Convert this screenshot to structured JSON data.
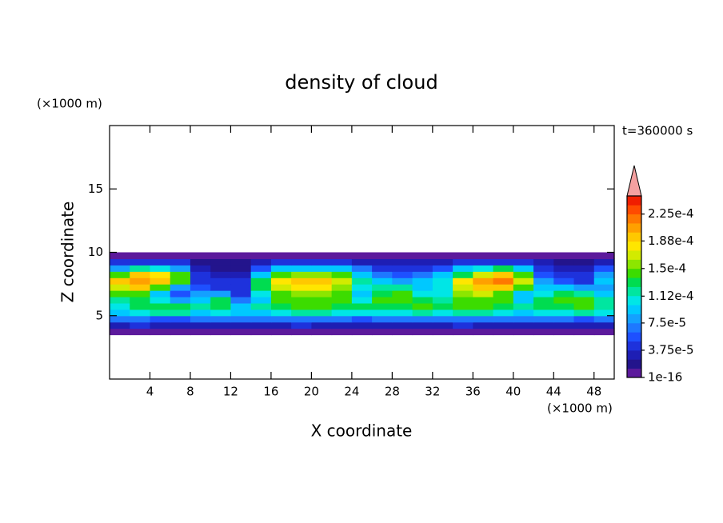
{
  "chart_data": {
    "type": "contour",
    "title": "density of cloud",
    "xlabel": "X coordinate",
    "ylabel": "Z coordinate",
    "xunit": "(×1000 m)",
    "yunit": "(×1000 m)",
    "annotation": "t=360000 s",
    "xlim": [
      0,
      50
    ],
    "ylim": [
      0,
      20
    ],
    "xticks": [
      4,
      8,
      12,
      16,
      20,
      24,
      28,
      32,
      36,
      40,
      44,
      48
    ],
    "yticks": [
      5,
      10,
      15
    ],
    "x": [
      1,
      3,
      5,
      7,
      9,
      11,
      13,
      15,
      17,
      19,
      21,
      23,
      25,
      27,
      29,
      31,
      33,
      35,
      37,
      39,
      41,
      43,
      45,
      47,
      49
    ],
    "z": [
      3.75,
      4.25,
      4.75,
      5.25,
      5.75,
      6.25,
      6.75,
      7.25,
      7.75,
      8.25,
      8.75,
      9.25,
      9.75
    ],
    "values": [
      [
        1e-05,
        1e-05,
        1e-05,
        1e-05,
        1e-05,
        1e-05,
        1e-05,
        1e-05,
        1e-05,
        1e-05,
        1e-05,
        1e-05,
        1e-05,
        1e-05,
        1e-05,
        1e-05,
        1e-05,
        1e-05,
        1e-05,
        1e-05,
        1e-05,
        1e-05,
        1e-05,
        1e-05,
        1e-05
      ],
      [
        3e-05,
        4e-05,
        3e-05,
        3e-05,
        3e-05,
        3e-05,
        3e-05,
        3e-05,
        3e-05,
        4e-05,
        3e-05,
        3e-05,
        3e-05,
        3e-05,
        3e-05,
        3e-05,
        3e-05,
        4e-05,
        3e-05,
        3e-05,
        3e-05,
        3e-05,
        3e-05,
        3e-05,
        3e-05
      ],
      [
        7e-05,
        7e-05,
        6e-05,
        6e-05,
        7e-05,
        7e-05,
        7e-05,
        7e-05,
        7e-05,
        7e-05,
        7e-05,
        7e-05,
        6e-05,
        7e-05,
        7e-05,
        7e-05,
        7e-05,
        7e-05,
        7e-05,
        7e-05,
        7e-05,
        7e-05,
        7e-05,
        6e-05,
        7e-05
      ],
      [
        0.0001,
        0.00011,
        0.00012,
        0.00012,
        0.0001,
        0.00011,
        9e-05,
        0.0001,
        0.00011,
        0.00012,
        0.00012,
        0.00011,
        0.00011,
        0.00011,
        0.00011,
        0.00012,
        0.00011,
        0.00012,
        0.00012,
        0.00011,
        0.0001,
        0.00011,
        0.00011,
        0.00012,
        0.00011
      ],
      [
        0.00011,
        0.00013,
        0.00013,
        0.00013,
        0.00012,
        0.00013,
        9e-05,
        0.00012,
        0.00013,
        0.00014,
        0.00014,
        0.00013,
        0.00013,
        0.00013,
        0.00013,
        0.00014,
        0.00013,
        0.00014,
        0.00014,
        0.00013,
        0.00012,
        0.00013,
        0.00013,
        0.00014,
        0.00012
      ],
      [
        0.00012,
        0.00013,
        0.00011,
        8e-05,
        0.0001,
        0.00013,
        7e-05,
        9e-05,
        0.00014,
        0.00015,
        0.00015,
        0.00014,
        0.00011,
        0.00014,
        0.00015,
        0.00013,
        0.00012,
        0.00015,
        0.00015,
        0.00014,
        0.0001,
        0.00013,
        0.00014,
        0.00015,
        0.00012
      ],
      [
        0.00014,
        0.00015,
        0.0001,
        6e-05,
        8e-05,
        8e-05,
        5e-05,
        0.00011,
        0.00015,
        0.00016,
        0.00016,
        0.00014,
        0.0001,
        0.00013,
        0.00015,
        0.00011,
        0.00011,
        0.00016,
        0.00017,
        0.00015,
        9e-05,
        0.00011,
        0.00013,
        0.00012,
        0.0001
      ],
      [
        0.00017,
        0.0002,
        0.00015,
        8e-05,
        6e-05,
        5e-05,
        4e-05,
        0.00013,
        0.00017,
        0.00018,
        0.00018,
        0.00016,
        0.00011,
        0.00012,
        0.00012,
        0.0001,
        0.00011,
        0.00017,
        0.0002,
        0.00019,
        0.00014,
        9e-05,
        9e-05,
        8e-05,
        8e-05
      ],
      [
        0.00019,
        0.00021,
        0.0002,
        0.00014,
        5e-05,
        4e-05,
        4e-05,
        0.00013,
        0.00018,
        0.00019,
        0.00019,
        0.00017,
        0.00012,
        9e-05,
        8e-05,
        9e-05,
        0.00011,
        0.00018,
        0.00021,
        0.00022,
        0.00017,
        8e-05,
        6e-05,
        5e-05,
        0.0001
      ],
      [
        0.00015,
        0.00019,
        0.00018,
        0.00014,
        4e-05,
        3e-05,
        3e-05,
        0.0001,
        0.00015,
        0.00016,
        0.00016,
        0.00014,
        0.0001,
        7e-05,
        6e-05,
        7e-05,
        9e-05,
        0.00013,
        0.00017,
        0.0002,
        0.00015,
        6e-05,
        4e-05,
        4e-05,
        8e-05
      ],
      [
        8e-05,
        0.00012,
        0.00011,
        8e-05,
        3e-05,
        2e-05,
        2e-05,
        6e-05,
        9e-05,
        0.0001,
        0.0001,
        9e-05,
        7e-05,
        5e-05,
        4e-05,
        5e-05,
        6e-05,
        9e-05,
        0.00011,
        0.00013,
        0.0001,
        5e-05,
        3e-05,
        3e-05,
        6e-05
      ],
      [
        4e-05,
        5e-05,
        5e-05,
        4e-05,
        2e-05,
        2e-05,
        2e-05,
        3e-05,
        4e-05,
        5e-05,
        5e-05,
        4e-05,
        3e-05,
        3e-05,
        3e-05,
        3e-05,
        3e-05,
        4e-05,
        5e-05,
        5e-05,
        4e-05,
        3e-05,
        2e-05,
        2e-05,
        3e-05
      ],
      [
        1e-05,
        1e-05,
        1e-05,
        1e-05,
        1e-05,
        1e-05,
        1e-05,
        1e-05,
        1e-05,
        1e-05,
        1e-05,
        1e-05,
        1e-05,
        1e-05,
        1e-05,
        1e-05,
        1e-05,
        1e-05,
        1e-05,
        1e-05,
        1e-05,
        1e-05,
        1e-05,
        1e-05,
        1e-05
      ]
    ],
    "colorbar": {
      "clim": [
        1e-16,
        0.00025
      ],
      "colors": [
        "#5c1a9c",
        "#23148c",
        "#1e1eb4",
        "#1e32dc",
        "#1e50ff",
        "#1e78ff",
        "#14a0ff",
        "#00c8ff",
        "#00e6e6",
        "#00e6a0",
        "#00dc50",
        "#3cdc00",
        "#8ce600",
        "#d2eb00",
        "#ffe600",
        "#ffc800",
        "#ffa000",
        "#ff7800",
        "#ff4b00",
        "#f01e00"
      ],
      "overflow_color": "#f4a0a0",
      "ticks": [
        {
          "value": 1e-16,
          "label": "1e-16"
        },
        {
          "value": 3.75e-05,
          "label": "3.75e-5"
        },
        {
          "value": 7.5e-05,
          "label": "7.5e-5"
        },
        {
          "value": 0.000112,
          "label": "1.12e-4"
        },
        {
          "value": 0.00015,
          "label": "1.5e-4"
        },
        {
          "value": 0.000188,
          "label": "1.88e-4"
        },
        {
          "value": 0.000225,
          "label": "2.25e-4"
        }
      ]
    }
  }
}
